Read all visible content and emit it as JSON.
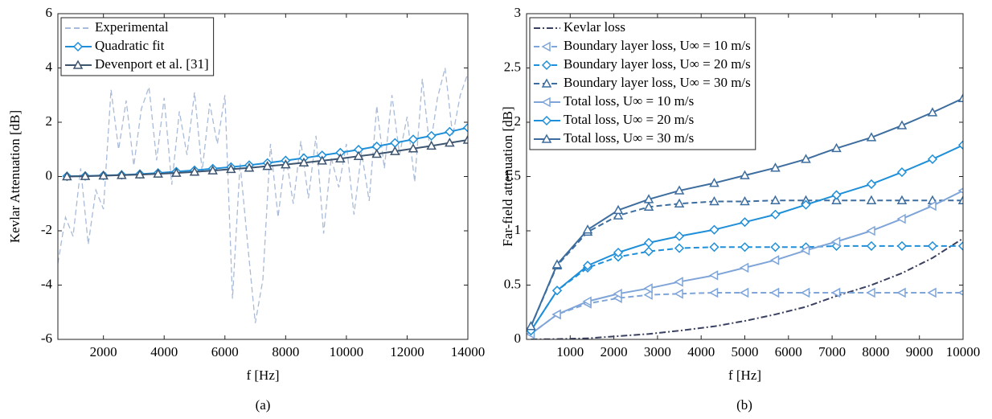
{
  "chart_data": [
    {
      "type": "line",
      "caption": "(a)",
      "xlabel": "f [Hz]",
      "ylabel": "Kevlar Attenuation [dB]",
      "xlim": [
        500,
        14000
      ],
      "xticks": [
        2000,
        4000,
        6000,
        8000,
        10000,
        12000,
        14000
      ],
      "ylim": [
        -6,
        6
      ],
      "yticks": [
        -6,
        -4,
        -2,
        0,
        2,
        4,
        6
      ],
      "legend": "upper left",
      "series": [
        {
          "name": "Experimental",
          "color": "#a9bbd8",
          "dash": "dashed",
          "marker": "none",
          "x": [
            500,
            750,
            1000,
            1250,
            1500,
            1750,
            2000,
            2250,
            2500,
            2750,
            3000,
            3250,
            3500,
            3750,
            4000,
            4250,
            4500,
            4750,
            5000,
            5250,
            5500,
            5750,
            6000,
            6250,
            6500,
            6750,
            7000,
            7250,
            7500,
            7750,
            8000,
            8250,
            8500,
            8750,
            9000,
            9250,
            9500,
            9750,
            10000,
            10250,
            10500,
            10750,
            11000,
            11250,
            11500,
            11750,
            12000,
            12250,
            12500,
            12750,
            13000,
            13250,
            13500,
            13750,
            14000
          ],
          "values": [
            -3.2,
            -1.5,
            -2.2,
            0.3,
            -2.5,
            -0.5,
            -1.2,
            3.2,
            1.0,
            2.8,
            0.4,
            2.5,
            3.3,
            0.6,
            2.9,
            -0.3,
            2.4,
            0.8,
            3.1,
            0.2,
            2.7,
            1.2,
            3.0,
            -4.5,
            0.5,
            -2.5,
            -5.4,
            -3.8,
            1.2,
            -1.5,
            0.8,
            -1.0,
            1.3,
            -0.8,
            1.5,
            -2.1,
            0.7,
            -0.4,
            1.2,
            -1.4,
            0.9,
            -0.9,
            2.6,
            0.3,
            3.0,
            0.8,
            2.2,
            -0.2,
            3.6,
            1.0,
            2.9,
            4.0,
            1.5,
            3.0,
            3.8
          ]
        },
        {
          "name": "Quadratic fit",
          "color": "#1e8fd8",
          "dash": "solid",
          "marker": "diamond",
          "x": [
            800,
            1400,
            2000,
            2600,
            3200,
            3800,
            4400,
            5000,
            5600,
            6200,
            6800,
            7400,
            8000,
            8600,
            9200,
            9800,
            10400,
            11000,
            11600,
            12200,
            12800,
            13400,
            14000
          ],
          "values": [
            0.01,
            0.02,
            0.04,
            0.06,
            0.09,
            0.13,
            0.18,
            0.23,
            0.29,
            0.35,
            0.42,
            0.5,
            0.59,
            0.68,
            0.78,
            0.88,
            0.99,
            1.11,
            1.24,
            1.37,
            1.5,
            1.65,
            1.8
          ]
        },
        {
          "name": "Devenport et al. [31]",
          "color": "#3e5570",
          "dash": "solid",
          "marker": "triangle-up",
          "x": [
            800,
            1400,
            2000,
            2600,
            3200,
            3800,
            4400,
            5000,
            5600,
            6200,
            6800,
            7400,
            8000,
            8600,
            9200,
            9800,
            10400,
            11000,
            11600,
            12200,
            12800,
            13400,
            14000
          ],
          "values": [
            0,
            0.01,
            0.03,
            0.05,
            0.07,
            0.1,
            0.13,
            0.17,
            0.22,
            0.27,
            0.32,
            0.38,
            0.44,
            0.51,
            0.58,
            0.66,
            0.75,
            0.83,
            0.93,
            1.03,
            1.13,
            1.24,
            1.35
          ]
        }
      ]
    },
    {
      "type": "line",
      "caption": "(b)",
      "xlabel": "f [Hz]",
      "ylabel": "Far-field attenuation [dB]",
      "xlim": [
        0,
        10000
      ],
      "xticks": [
        1000,
        2000,
        3000,
        4000,
        5000,
        6000,
        7000,
        8000,
        9000,
        10000
      ],
      "ylim": [
        0,
        3
      ],
      "yticks": [
        0,
        0.5,
        1,
        1.5,
        2,
        2.5,
        3
      ],
      "legend": "upper left",
      "x": [
        100,
        700,
        1400,
        2100,
        2800,
        3500,
        4300,
        5000,
        5700,
        6400,
        7100,
        7900,
        8600,
        9300,
        10000
      ],
      "series": [
        {
          "name": "Kevlar loss",
          "color": "#3a4060",
          "dash": "dashdot",
          "marker": "none",
          "values": [
            0,
            0.003,
            0.01,
            0.03,
            0.05,
            0.08,
            0.12,
            0.17,
            0.23,
            0.3,
            0.4,
            0.5,
            0.61,
            0.75,
            0.93
          ]
        },
        {
          "name": "Boundary layer loss, U∞ = 10 m/s",
          "color": "#7fa5d8",
          "dash": "dashed",
          "marker": "triangle-left",
          "values": [
            0.05,
            0.23,
            0.33,
            0.38,
            0.41,
            0.42,
            0.43,
            0.43,
            0.43,
            0.43,
            0.43,
            0.43,
            0.43,
            0.43,
            0.43
          ]
        },
        {
          "name": "Boundary layer loss, U∞ = 20 m/s",
          "color": "#1e8fd8",
          "dash": "dashed",
          "marker": "diamond",
          "values": [
            0.08,
            0.45,
            0.66,
            0.76,
            0.81,
            0.84,
            0.85,
            0.85,
            0.85,
            0.85,
            0.86,
            0.86,
            0.86,
            0.86,
            0.86
          ]
        },
        {
          "name": "Boundary layer loss, U∞ = 30 m/s",
          "color": "#3d6d9e",
          "dash": "dashed",
          "marker": "triangle-up",
          "values": [
            0.12,
            0.68,
            0.99,
            1.14,
            1.22,
            1.25,
            1.27,
            1.27,
            1.28,
            1.28,
            1.28,
            1.28,
            1.28,
            1.28,
            1.28
          ]
        },
        {
          "name": "Total loss, U∞ = 10 m/s",
          "color": "#7fa5d8",
          "dash": "solid",
          "marker": "triangle-left",
          "values": [
            0.05,
            0.23,
            0.35,
            0.42,
            0.47,
            0.53,
            0.59,
            0.66,
            0.73,
            0.82,
            0.9,
            1.0,
            1.11,
            1.23,
            1.37
          ]
        },
        {
          "name": "Total loss, U∞ = 20 m/s",
          "color": "#1e8fd8",
          "dash": "solid",
          "marker": "diamond",
          "values": [
            0.08,
            0.45,
            0.68,
            0.8,
            0.89,
            0.95,
            1.01,
            1.08,
            1.15,
            1.24,
            1.33,
            1.43,
            1.54,
            1.66,
            1.79
          ]
        },
        {
          "name": "Total loss, U∞ = 30 m/s",
          "color": "#3d6d9e",
          "dash": "solid",
          "marker": "triangle-up",
          "values": [
            0.12,
            0.69,
            1.01,
            1.19,
            1.29,
            1.37,
            1.44,
            1.51,
            1.58,
            1.66,
            1.76,
            1.86,
            1.97,
            2.09,
            2.22
          ]
        }
      ]
    }
  ]
}
